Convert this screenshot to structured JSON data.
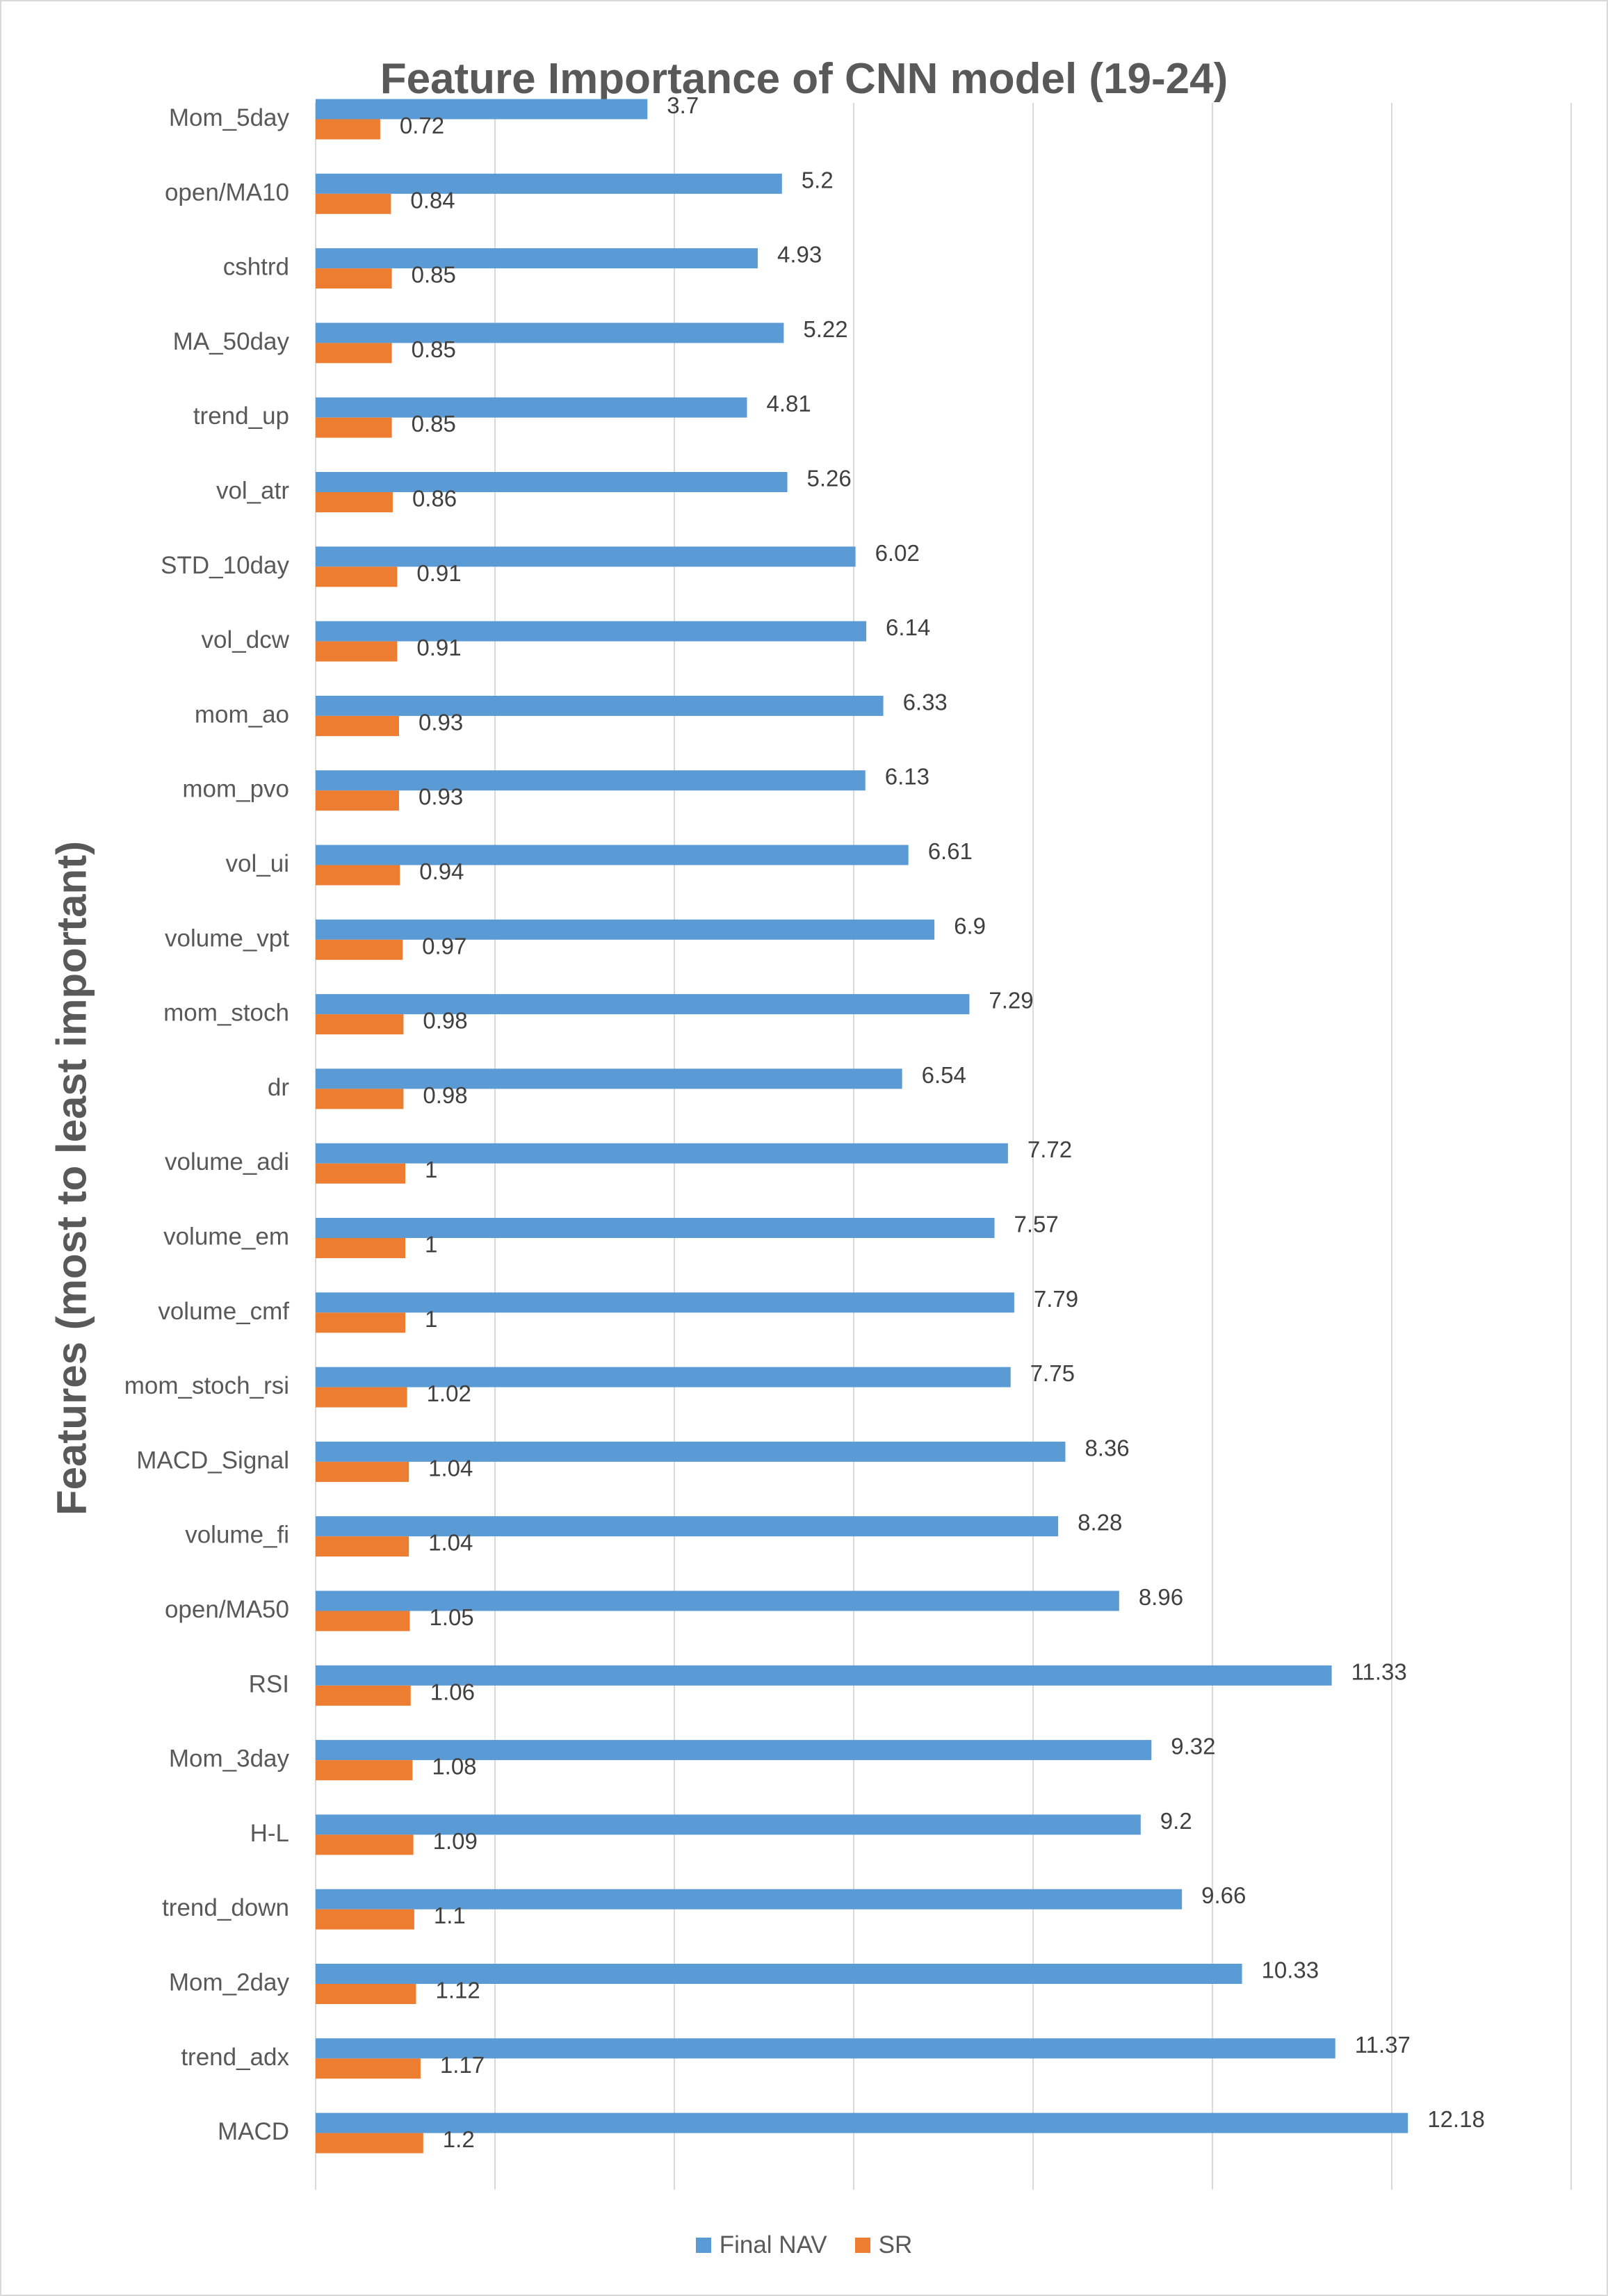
{
  "chart_data": {
    "type": "bar",
    "orientation": "horizontal",
    "title": "Feature Importance of CNN model (19-24)",
    "xlabel": "",
    "ylabel": "Features (most to least important)",
    "xlim": [
      0,
      14
    ],
    "grid": true,
    "legend_position": "bottom",
    "categories": [
      "Mom_5day",
      "open/MA10",
      "cshtrd",
      "MA_50day",
      "trend_up",
      "vol_atr",
      "STD_10day",
      "vol_dcw",
      "mom_ao",
      "mom_pvo",
      "vol_ui",
      "volume_vpt",
      "mom_stoch",
      "dr",
      "volume_adi",
      "volume_em",
      "volume_cmf",
      "mom_stoch_rsi",
      "MACD_Signal",
      "volume_fi",
      "open/MA50",
      "RSI",
      "Mom_3day",
      "H-L",
      "trend_down",
      "Mom_2day",
      "trend_adx",
      "MACD"
    ],
    "series": [
      {
        "name": "Final NAV",
        "color": "#5b9bd5",
        "values": [
          3.7,
          5.2,
          4.93,
          5.22,
          4.81,
          5.26,
          6.02,
          6.14,
          6.33,
          6.13,
          6.61,
          6.9,
          7.29,
          6.54,
          7.72,
          7.57,
          7.79,
          7.75,
          8.36,
          8.28,
          8.96,
          11.33,
          9.32,
          9.2,
          9.66,
          10.33,
          11.37,
          12.18
        ]
      },
      {
        "name": "SR",
        "color": "#ed7d31",
        "values": [
          0.72,
          0.84,
          0.85,
          0.85,
          0.85,
          0.86,
          0.91,
          0.91,
          0.93,
          0.93,
          0.94,
          0.97,
          0.98,
          0.98,
          1,
          1,
          1,
          1.02,
          1.04,
          1.04,
          1.05,
          1.06,
          1.08,
          1.09,
          1.1,
          1.12,
          1.17,
          1.2
        ]
      }
    ]
  }
}
